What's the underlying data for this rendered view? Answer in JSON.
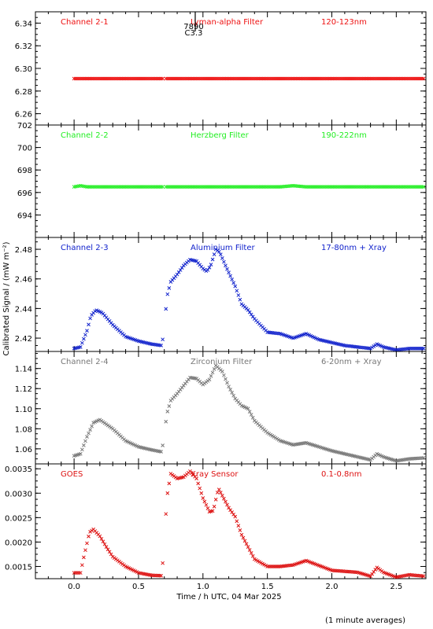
{
  "chart_data": {
    "type": "scatter",
    "marker_symbol": "×",
    "xlabel": "Time / h UTC, 04 Mar 2025",
    "ylabel": "Calibrated Signal / (mW m⁻²)",
    "footnote": "(1 minute averages)",
    "xlim": [
      -0.3,
      2.73
    ],
    "xticks": [
      "0.0",
      "0.5",
      "1.0",
      "1.5",
      "2.0",
      "2.5"
    ],
    "event_marker": {
      "x": 0.94,
      "label_top": "7890",
      "label_bottom": "C3.3"
    },
    "panels": [
      {
        "name": "Channel 2-1",
        "filter": "Lyman-alpha Filter",
        "band": "120-123nm",
        "color": "#ee1111",
        "ylim": [
          6.25,
          6.35
        ],
        "yticks": [
          "6.26",
          "6.28",
          "6.30",
          "6.32",
          "6.34"
        ],
        "points": [
          [
            0.0,
            6.291
          ],
          [
            0.1,
            6.291
          ],
          [
            0.2,
            6.291
          ],
          [
            0.3,
            6.291
          ],
          [
            0.4,
            6.291
          ],
          [
            0.5,
            6.291
          ],
          [
            0.6,
            6.291
          ],
          [
            0.7,
            6.291
          ],
          [
            0.8,
            6.291
          ],
          [
            0.9,
            6.291
          ],
          [
            1.0,
            6.291
          ],
          [
            1.1,
            6.291
          ],
          [
            1.2,
            6.291
          ],
          [
            1.3,
            6.291
          ],
          [
            1.4,
            6.291
          ],
          [
            1.5,
            6.291
          ],
          [
            1.6,
            6.291
          ],
          [
            1.7,
            6.291
          ],
          [
            1.8,
            6.291
          ],
          [
            1.9,
            6.291
          ],
          [
            2.0,
            6.291
          ],
          [
            2.1,
            6.291
          ],
          [
            2.2,
            6.291
          ],
          [
            2.3,
            6.291
          ],
          [
            2.4,
            6.291
          ],
          [
            2.5,
            6.291
          ],
          [
            2.6,
            6.291
          ],
          [
            2.72,
            6.291
          ]
        ]
      },
      {
        "name": "Channel 2-2",
        "filter": "Herzberg Filter",
        "band": "190-222nm",
        "color": "#22ee22",
        "ylim": [
          692,
          702
        ],
        "yticks": [
          "694",
          "696",
          "698",
          "700",
          "702"
        ],
        "points": [
          [
            0.0,
            696.5
          ],
          [
            0.05,
            696.6
          ],
          [
            0.1,
            696.5
          ],
          [
            0.2,
            696.5
          ],
          [
            0.3,
            696.5
          ],
          [
            0.4,
            696.5
          ],
          [
            0.5,
            696.5
          ],
          [
            0.6,
            696.5
          ],
          [
            0.7,
            696.5
          ],
          [
            0.8,
            696.5
          ],
          [
            0.9,
            696.5
          ],
          [
            1.0,
            696.5
          ],
          [
            1.1,
            696.5
          ],
          [
            1.2,
            696.5
          ],
          [
            1.3,
            696.5
          ],
          [
            1.4,
            696.5
          ],
          [
            1.5,
            696.5
          ],
          [
            1.6,
            696.5
          ],
          [
            1.7,
            696.6
          ],
          [
            1.8,
            696.5
          ],
          [
            1.9,
            696.5
          ],
          [
            2.0,
            696.5
          ],
          [
            2.1,
            696.5
          ],
          [
            2.2,
            696.5
          ],
          [
            2.3,
            696.5
          ],
          [
            2.4,
            696.5
          ],
          [
            2.5,
            696.5
          ],
          [
            2.6,
            696.5
          ],
          [
            2.72,
            696.5
          ]
        ]
      },
      {
        "name": "Channel 2-3",
        "filter": "Aluminium Filter",
        "band": "17-80nm + Xray",
        "color": "#1122cc",
        "ylim": [
          2.411,
          2.488
        ],
        "yticks": [
          "2.42",
          "2.44",
          "2.46",
          "2.48"
        ],
        "points": [
          [
            0.0,
            2.413
          ],
          [
            0.05,
            2.414
          ],
          [
            0.1,
            2.425
          ],
          [
            0.13,
            2.435
          ],
          [
            0.17,
            2.439
          ],
          [
            0.22,
            2.437
          ],
          [
            0.3,
            2.429
          ],
          [
            0.4,
            2.421
          ],
          [
            0.5,
            2.418
          ],
          [
            0.6,
            2.416
          ],
          [
            0.68,
            2.415
          ],
          [
            0.7,
            2.426
          ],
          [
            0.72,
            2.448
          ],
          [
            0.75,
            2.458
          ],
          [
            0.8,
            2.463
          ],
          [
            0.85,
            2.469
          ],
          [
            0.9,
            2.473
          ],
          [
            0.95,
            2.472
          ],
          [
            1.0,
            2.467
          ],
          [
            1.03,
            2.465
          ],
          [
            1.06,
            2.469
          ],
          [
            1.1,
            2.48
          ],
          [
            1.13,
            2.478
          ],
          [
            1.18,
            2.468
          ],
          [
            1.25,
            2.455
          ],
          [
            1.3,
            2.443
          ],
          [
            1.35,
            2.439
          ],
          [
            1.4,
            2.433
          ],
          [
            1.5,
            2.424
          ],
          [
            1.6,
            2.423
          ],
          [
            1.7,
            2.42
          ],
          [
            1.8,
            2.423
          ],
          [
            1.9,
            2.419
          ],
          [
            2.0,
            2.417
          ],
          [
            2.1,
            2.415
          ],
          [
            2.2,
            2.414
          ],
          [
            2.3,
            2.413
          ],
          [
            2.35,
            2.416
          ],
          [
            2.4,
            2.414
          ],
          [
            2.5,
            2.412
          ],
          [
            2.6,
            2.413
          ],
          [
            2.72,
            2.413
          ]
        ]
      },
      {
        "name": "Channel 2-4",
        "filter": "Zirconium Filter",
        "band": "6-20nm + Xray",
        "color": "#777777",
        "ylim": [
          1.045,
          1.157
        ],
        "yticks": [
          "1.06",
          "1.08",
          "1.10",
          "1.12",
          "1.14"
        ],
        "points": [
          [
            0.0,
            1.053
          ],
          [
            0.05,
            1.055
          ],
          [
            0.1,
            1.072
          ],
          [
            0.15,
            1.086
          ],
          [
            0.2,
            1.089
          ],
          [
            0.3,
            1.08
          ],
          [
            0.4,
            1.068
          ],
          [
            0.5,
            1.062
          ],
          [
            0.6,
            1.059
          ],
          [
            0.68,
            1.057
          ],
          [
            0.7,
            1.074
          ],
          [
            0.72,
            1.095
          ],
          [
            0.75,
            1.108
          ],
          [
            0.8,
            1.115
          ],
          [
            0.85,
            1.123
          ],
          [
            0.9,
            1.131
          ],
          [
            0.95,
            1.13
          ],
          [
            1.0,
            1.124
          ],
          [
            1.05,
            1.129
          ],
          [
            1.1,
            1.143
          ],
          [
            1.15,
            1.137
          ],
          [
            1.2,
            1.122
          ],
          [
            1.25,
            1.11
          ],
          [
            1.3,
            1.103
          ],
          [
            1.35,
            1.1
          ],
          [
            1.4,
            1.088
          ],
          [
            1.5,
            1.076
          ],
          [
            1.6,
            1.068
          ],
          [
            1.7,
            1.064
          ],
          [
            1.8,
            1.066
          ],
          [
            1.9,
            1.062
          ],
          [
            2.0,
            1.058
          ],
          [
            2.1,
            1.055
          ],
          [
            2.2,
            1.052
          ],
          [
            2.3,
            1.049
          ],
          [
            2.35,
            1.055
          ],
          [
            2.4,
            1.052
          ],
          [
            2.5,
            1.048
          ],
          [
            2.6,
            1.05
          ],
          [
            2.72,
            1.051
          ]
        ]
      },
      {
        "name": "GOES",
        "filter": "Xray Sensor",
        "band": "0.1-0.8nm",
        "color": "#dd1111",
        "ylim": [
          0.00125,
          0.0036
        ],
        "yticks": [
          "0.0015",
          "0.0020",
          "0.0025",
          "0.0030",
          "0.0035"
        ],
        "points": [
          [
            0.0,
            0.00137
          ],
          [
            0.05,
            0.00137
          ],
          [
            0.08,
            0.00175
          ],
          [
            0.12,
            0.0022
          ],
          [
            0.15,
            0.00226
          ],
          [
            0.2,
            0.00212
          ],
          [
            0.25,
            0.0019
          ],
          [
            0.3,
            0.0017
          ],
          [
            0.4,
            0.0015
          ],
          [
            0.5,
            0.00137
          ],
          [
            0.6,
            0.00132
          ],
          [
            0.68,
            0.00131
          ],
          [
            0.7,
            0.002
          ],
          [
            0.72,
            0.00292
          ],
          [
            0.75,
            0.0034
          ],
          [
            0.8,
            0.0033
          ],
          [
            0.85,
            0.00333
          ],
          [
            0.9,
            0.00345
          ],
          [
            0.95,
            0.0033
          ],
          [
            1.0,
            0.0029
          ],
          [
            1.05,
            0.00262
          ],
          [
            1.08,
            0.00264
          ],
          [
            1.12,
            0.0031
          ],
          [
            1.15,
            0.00295
          ],
          [
            1.2,
            0.0027
          ],
          [
            1.25,
            0.00252
          ],
          [
            1.3,
            0.00215
          ],
          [
            1.35,
            0.0019
          ],
          [
            1.4,
            0.00165
          ],
          [
            1.5,
            0.0015
          ],
          [
            1.6,
            0.0015
          ],
          [
            1.7,
            0.00153
          ],
          [
            1.8,
            0.00162
          ],
          [
            1.9,
            0.00152
          ],
          [
            2.0,
            0.00142
          ],
          [
            2.1,
            0.0014
          ],
          [
            2.2,
            0.00138
          ],
          [
            2.3,
            0.0013
          ],
          [
            2.35,
            0.00148
          ],
          [
            2.4,
            0.00138
          ],
          [
            2.5,
            0.00128
          ],
          [
            2.6,
            0.00133
          ],
          [
            2.72,
            0.0013
          ]
        ]
      }
    ]
  }
}
